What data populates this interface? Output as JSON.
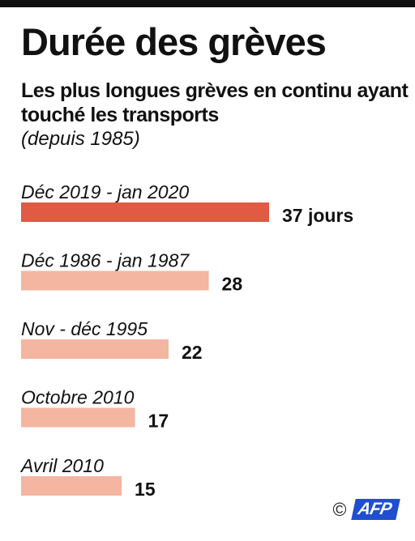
{
  "title": "Durée des grèves",
  "subtitle": "Les plus longues grèves en continu ayant touché les transports",
  "note": "(depuis 1985)",
  "colors": {
    "highlight": "#e05a44",
    "bar": "#f4b5a1",
    "text": "#111111",
    "rule": "#111111",
    "logo": "#1f4fd1"
  },
  "chart_data": {
    "type": "bar",
    "orientation": "horizontal",
    "categories": [
      "Déc 2019 - jan 2020",
      "Déc 1986 - jan 1987",
      "Nov - déc 1995",
      "Octobre 2010",
      "Avril 2010"
    ],
    "values": [
      37,
      28,
      22,
      17,
      15
    ],
    "value_labels": [
      "37 jours",
      "28",
      "22",
      "17",
      "15"
    ],
    "highlight_index": 0,
    "unit": "jours",
    "grid": false,
    "legend": "none"
  },
  "footer": {
    "copyright": "©",
    "logo": "AFP"
  }
}
